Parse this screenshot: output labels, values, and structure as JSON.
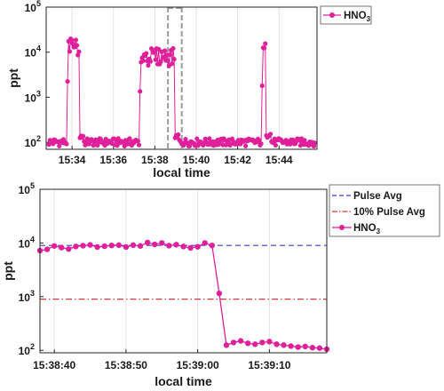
{
  "chart_data": [
    {
      "type": "scatter",
      "xlabel": "local time",
      "ylabel": "ppt",
      "yscale": "log",
      "ylim": [
        70,
        100000
      ],
      "xlim": [
        "15:32:45",
        "15:45:50"
      ],
      "x_ticks": [
        "15:34",
        "15:36",
        "15:38",
        "15:40",
        "15:42",
        "15:44"
      ],
      "y_ticks": [
        "10^2",
        "10^3",
        "10^4",
        "10^5"
      ],
      "grid": "vertical",
      "legend": "top-right",
      "series": [
        {
          "name": "HNO3",
          "color": "#e0209a",
          "marker": "circle",
          "line": true,
          "baseline_level": 100,
          "pulses": [
            {
              "start": "15:33:48",
              "end": "15:34:20",
              "peak_level": 15000
            },
            {
              "start": "15:37:20",
              "end": "15:38:56",
              "peak_level": 9000
            },
            {
              "start": "15:43:12",
              "end": "15:43:22",
              "peak_level": 12000
            }
          ]
        }
      ],
      "highlight_window": [
        "15:38:38",
        "15:39:18"
      ],
      "legend_label": {
        "main": "HNO",
        "sub": "3"
      }
    },
    {
      "type": "line",
      "xlabel": "local time",
      "ylabel": "ppt",
      "yscale": "log",
      "ylim": [
        90,
        100000
      ],
      "xlim": [
        "15:38:38",
        "15:39:18"
      ],
      "x_ticks": [
        "15:38:40",
        "15:38:50",
        "15:39:00",
        "15:39:10"
      ],
      "y_ticks": [
        "10^2",
        "10^3",
        "10^4",
        "10^5"
      ],
      "grid": "vertical",
      "legend": "top-right",
      "series": [
        {
          "name": "Pulse Avg",
          "color": "#3c3cd2",
          "style": "dashed",
          "value": 9000
        },
        {
          "name": "10% Pulse Avg",
          "color": "#d23c3c",
          "style": "dashdot",
          "value": 900
        },
        {
          "name": "HNO3",
          "color": "#e0209a",
          "marker": "circle",
          "x_seconds": [
            0,
            1,
            2,
            3,
            4,
            5,
            6,
            7,
            8,
            9,
            10,
            11,
            12,
            13,
            14,
            15,
            16,
            17,
            18,
            19,
            20,
            21,
            22,
            23,
            24,
            25,
            26,
            27,
            28,
            29,
            30,
            31,
            32,
            33,
            34,
            35,
            36,
            37,
            38,
            39,
            40
          ],
          "y": [
            7200,
            7600,
            8800,
            8200,
            7700,
            8600,
            8900,
            9200,
            8400,
            8700,
            9000,
            9100,
            8400,
            9100,
            8800,
            10200,
            9400,
            10000,
            8900,
            9300,
            8600,
            8100,
            8500,
            10000,
            9000,
            1150,
            125,
            140,
            150,
            135,
            130,
            140,
            145,
            130,
            125,
            120,
            115,
            118,
            112,
            110,
            105
          ]
        }
      ],
      "legend_labels": {
        "pulse_avg": "Pulse Avg",
        "ten_pct": "10% Pulse Avg",
        "hno3_main": "HNO",
        "hno3_sub": "3"
      }
    }
  ]
}
